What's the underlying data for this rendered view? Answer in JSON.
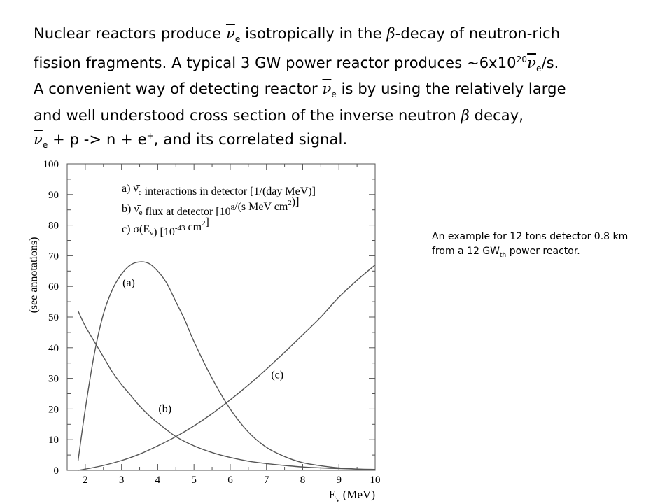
{
  "intro": {
    "l1_a": "Nuclear reactors produce ",
    "nu": "ν",
    "sub_e": "e",
    "l1_b": " isotropically in the ",
    "beta": "β",
    "l1_c": "-decay of neutron-rich",
    "l2_a": "fission fragments. A typical 3 GW power reactor produces ~6x10",
    "exp20": "20",
    "l2_b": "/s.",
    "l3_a": "A convenient way of detecting reactor ",
    "l3_b": " is by using the relatively large",
    "l4_a": "and well understood cross section of the inverse neutron ",
    "l4_b": " decay,",
    "l5_a": " + p -> n + e",
    "plus": "+",
    "l5_b": ", and its correlated signal."
  },
  "caption": {
    "a": "An example for 12 tons detector 0.8 km from a 12 GW",
    "sub": "th",
    "b": " power reactor."
  },
  "chart_data": {
    "type": "line",
    "xlabel": "E_ν (MeV)",
    "ylabel": "(see annotations)",
    "xlim": [
      1.5,
      10
    ],
    "ylim": [
      0,
      100
    ],
    "x_ticks": [
      2,
      3,
      4,
      5,
      6,
      7,
      8,
      9,
      10
    ],
    "y_ticks": [
      0,
      10,
      20,
      30,
      40,
      50,
      60,
      70,
      80,
      90,
      100
    ],
    "legend": [
      "a) ν̄e interactions in detector [1/(day MeV)]",
      "b) ν̄e flux at detector [10^8/(s MeV cm^2)]",
      "c) σ(Eν) [10^-43 cm^2]"
    ],
    "legend_position": "top",
    "series": [
      {
        "name": "(a)",
        "x": [
          1.8,
          2.0,
          2.25,
          2.5,
          2.75,
          3.0,
          3.25,
          3.5,
          3.75,
          4.0,
          4.25,
          4.5,
          4.75,
          5.0,
          5.5,
          6.0,
          6.5,
          7.0,
          7.5,
          8.0,
          8.5,
          9.0,
          9.5,
          10.0
        ],
        "y": [
          3,
          20,
          38,
          51,
          59,
          64,
          67,
          68,
          67.5,
          65,
          61,
          55,
          49,
          42,
          30,
          20,
          12.5,
          7.5,
          4.5,
          2.5,
          1.5,
          0.8,
          0.4,
          0.2
        ]
      },
      {
        "name": "(b)",
        "x": [
          1.8,
          2.0,
          2.25,
          2.5,
          2.75,
          3.0,
          3.25,
          3.5,
          3.75,
          4.0,
          4.5,
          5.0,
          5.5,
          6.0,
          6.5,
          7.0,
          7.5,
          8.0,
          8.5,
          9.0,
          9.5,
          10.0
        ],
        "y": [
          52,
          47,
          42,
          37,
          32,
          28,
          24.5,
          21,
          18,
          15.5,
          11,
          8,
          5.8,
          4.2,
          3,
          2.2,
          1.6,
          1.1,
          0.8,
          0.6,
          0.4,
          0.3
        ]
      },
      {
        "name": "(c)",
        "x": [
          1.8,
          2.0,
          2.5,
          3.0,
          3.5,
          4.0,
          4.5,
          5.0,
          5.5,
          6.0,
          6.5,
          7.0,
          7.5,
          8.0,
          8.5,
          9.0,
          9.5,
          10.0
        ],
        "y": [
          0,
          0.4,
          1.6,
          3.2,
          5.3,
          8,
          11,
          14.5,
          18.5,
          23,
          27.8,
          33,
          38.5,
          44.2,
          50,
          56.5,
          62,
          67
        ]
      }
    ],
    "curve_labels": [
      {
        "text": "(a)",
        "x": 3.2,
        "y": 60
      },
      {
        "text": "(b)",
        "x": 4.2,
        "y": 19
      },
      {
        "text": "(c)",
        "x": 7.3,
        "y": 30
      }
    ],
    "grid": false,
    "line_color": "#555555"
  }
}
